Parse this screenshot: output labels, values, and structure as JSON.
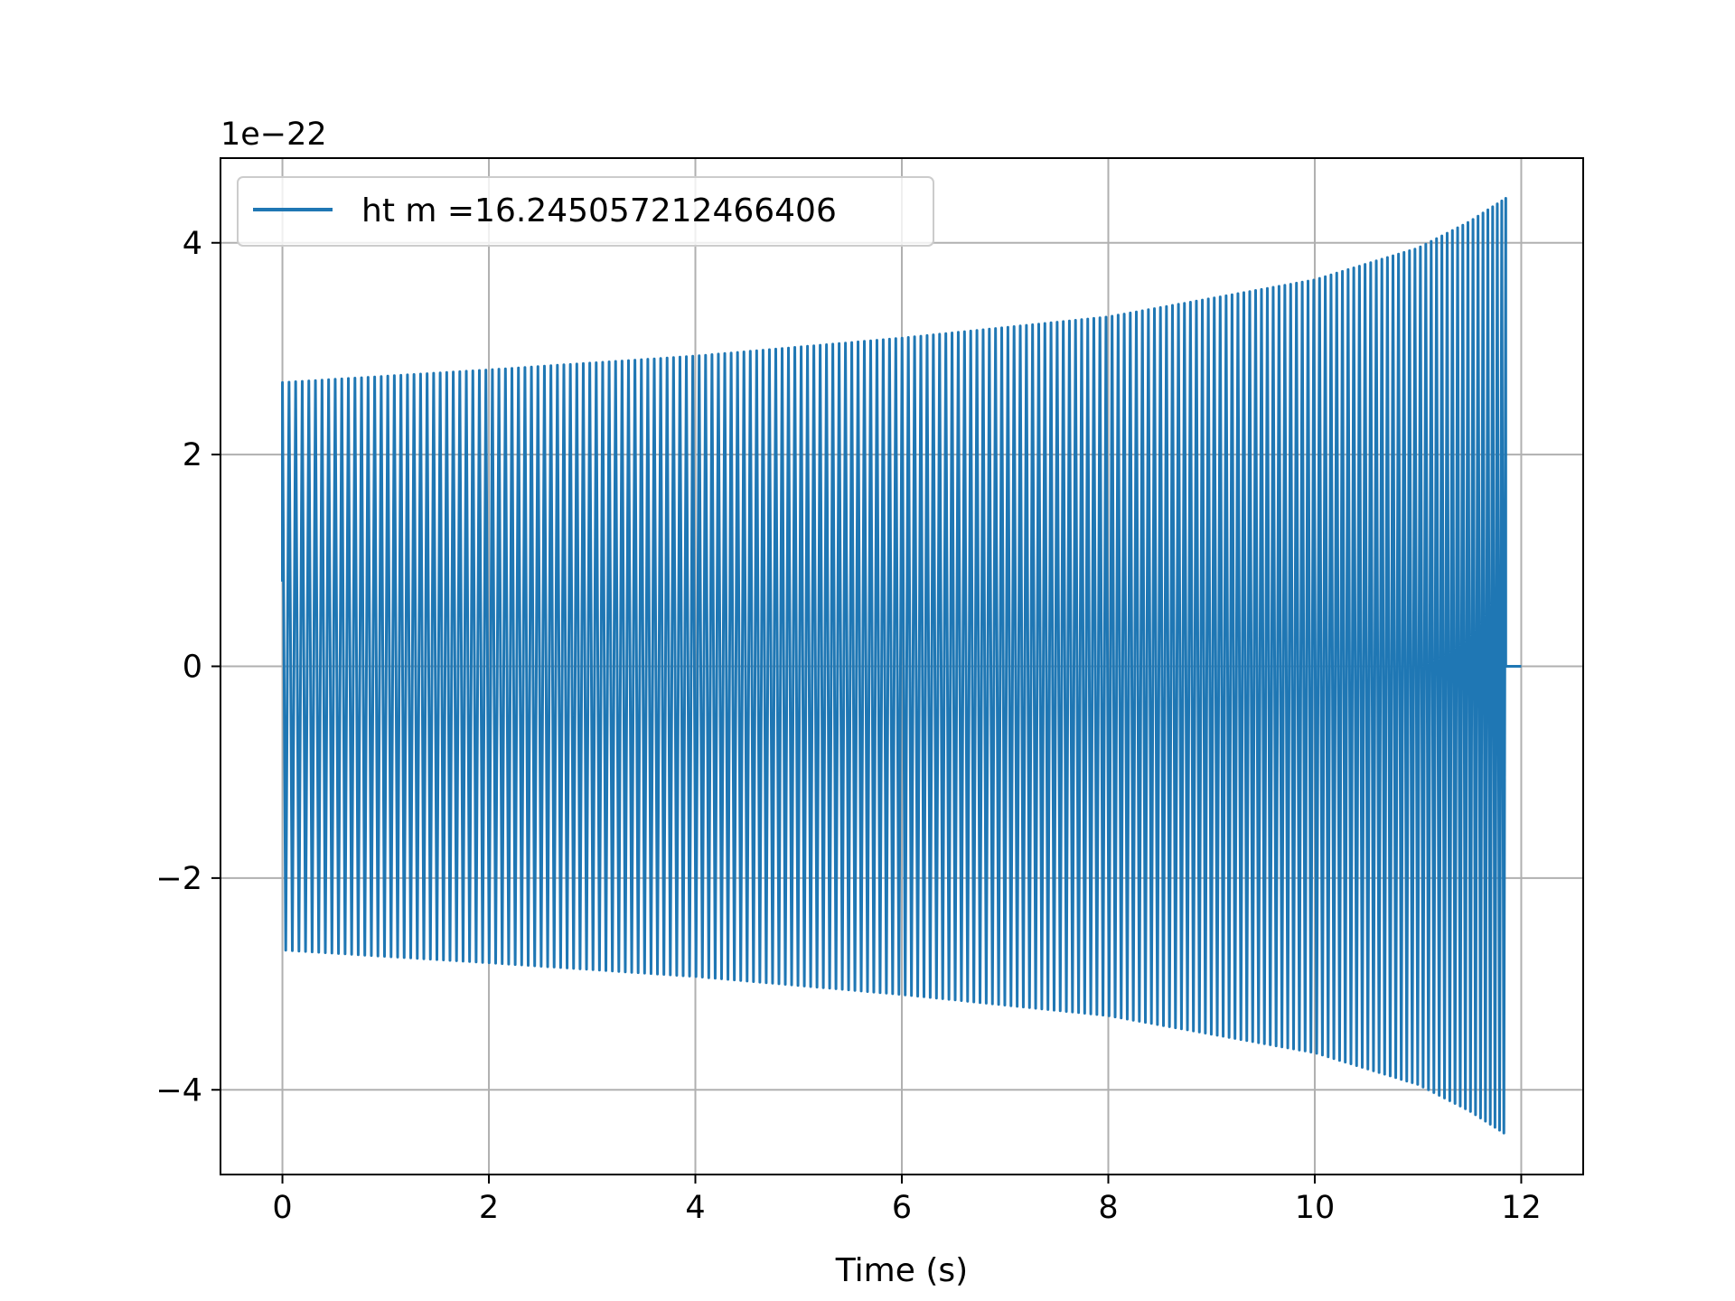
{
  "chart_data": {
    "type": "line",
    "title": "",
    "xlabel": "Time (s)",
    "ylabel": "",
    "y_offset_label": "1e−22",
    "xlim": [
      -0.6,
      12.6
    ],
    "ylim": [
      -4.8,
      4.8
    ],
    "x_ticks": [
      0,
      2,
      4,
      6,
      8,
      10,
      12
    ],
    "y_ticks": [
      -4,
      -2,
      0,
      2,
      4
    ],
    "x_tick_labels": [
      "0",
      "2",
      "4",
      "6",
      "8",
      "10",
      "12"
    ],
    "y_tick_labels": [
      "−4",
      "−2",
      "0",
      "2",
      "4"
    ],
    "grid": true,
    "legend_position": "top-left",
    "series": [
      {
        "name": "ht m =16.245057212466406",
        "color": "#1f77b4",
        "description_points": {
          "x": [
            0.0,
            2.0,
            4.0,
            6.0,
            8.0,
            10.0,
            11.0,
            11.5,
            11.85
          ],
          "amplitude": [
            2.68,
            2.8,
            2.93,
            3.1,
            3.3,
            3.65,
            3.95,
            4.2,
            4.42
          ]
        },
        "initial_value": 0.8,
        "end_time": 11.85,
        "tail_end_time": 12.0
      }
    ]
  }
}
